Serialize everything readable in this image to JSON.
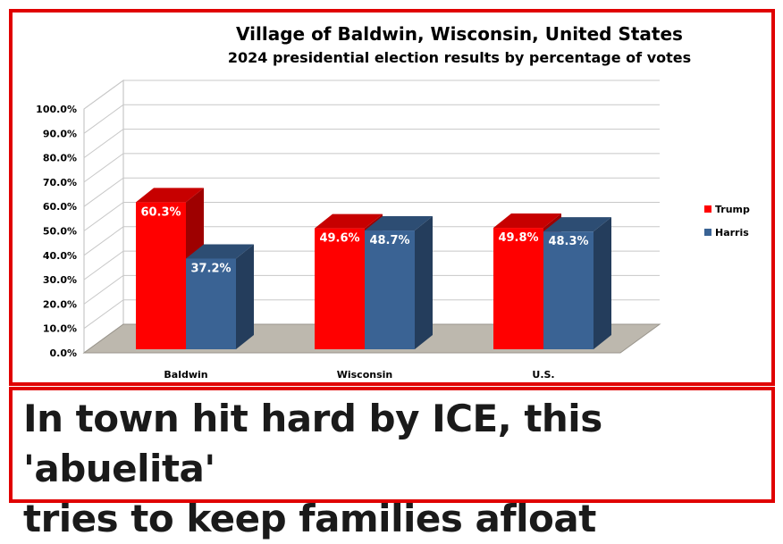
{
  "chart_data": {
    "type": "bar",
    "title": "Village of Baldwin, Wisconsin, United States",
    "subtitle": "2024 presidential election results by percentage of votes",
    "categories": [
      "Baldwin",
      "Wisconsin",
      "U.S."
    ],
    "series": [
      {
        "name": "Trump",
        "values": [
          60.3,
          49.6,
          49.8
        ],
        "labels": [
          "60.3%",
          "49.6%",
          "49.8%"
        ],
        "color": "#ff0000"
      },
      {
        "name": "Harris",
        "values": [
          37.2,
          48.7,
          48.3
        ],
        "labels": [
          "37.2%",
          "48.7%",
          "48.3%"
        ],
        "color": "#3a6394"
      }
    ],
    "ylim": [
      0,
      100
    ],
    "yticks": [
      "0.0%",
      "10.0%",
      "20.0%",
      "30.0%",
      "40.0%",
      "50.0%",
      "60.0%",
      "70.0%",
      "80.0%",
      "90.0%",
      "100.0%"
    ],
    "grid": true,
    "legend": "right",
    "style": "3d"
  },
  "headline": {
    "line1": "In town hit hard by ICE, this 'abuelita'",
    "line2": "tries to keep families afloat"
  }
}
